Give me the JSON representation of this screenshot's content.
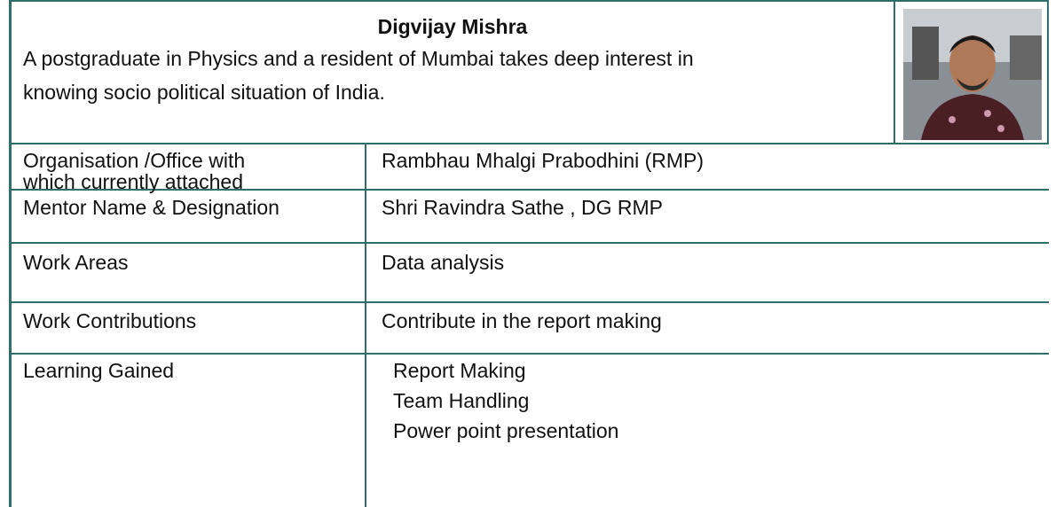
{
  "header": {
    "name": "Digvijay Mishra",
    "description": [
      "A postgraduate in Physics and a resident of Mumbai takes deep interest in",
      "knowing socio political situation of India."
    ]
  },
  "table": {
    "rows": [
      [
        "Organisation /Office with",
        "which currently attached",
        "Rambhau Mhalgi Prabodhini (RMP)"
      ],
      [
        "Mentor Name & Designation",
        "Shri Ravindra Sathe , DG RMP"
      ],
      [
        "Work Areas",
        "Data analysis"
      ],
      [
        "Work Contributions",
        "Contribute in the report making"
      ],
      [
        "Learning Gained",
        "Report Making",
        "Team Handling",
        "Power point presentation"
      ]
    ]
  }
}
